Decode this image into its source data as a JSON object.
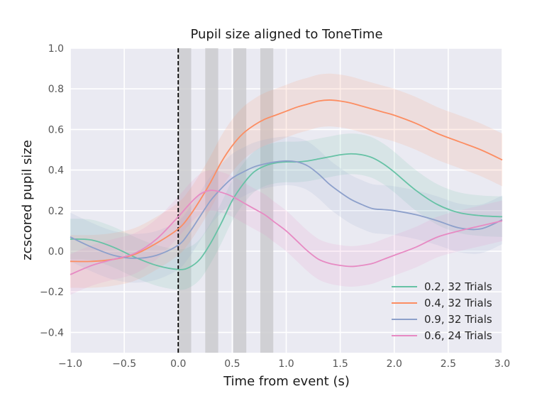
{
  "chart_data": {
    "type": "line",
    "title": "Pupil size aligned to ToneTime",
    "xlabel": "Time from event (s)",
    "ylabel": "zcscored pupil size",
    "xlim": [
      -1.0,
      3.0
    ],
    "ylim": [
      -0.5,
      1.0
    ],
    "xticks": [
      "−1.0",
      "−0.5",
      "0.0",
      "0.5",
      "1.0",
      "1.5",
      "2.0",
      "2.5",
      "3.0"
    ],
    "yticks": [
      "−0.4",
      "−0.2",
      "0.0",
      "0.2",
      "0.4",
      "0.6",
      "0.8",
      "1.0"
    ],
    "grid": true,
    "legend_position": "lower-right",
    "event_line_x": 0.0,
    "shaded_windows": [
      [
        0.0,
        0.12
      ],
      [
        0.25,
        0.37
      ],
      [
        0.51,
        0.63
      ],
      [
        0.76,
        0.88
      ]
    ],
    "colors": {
      "background": "#eaeaf2",
      "grid": "#ffffff",
      "window": "#c9c9cc",
      "event_line": "#000000"
    },
    "series": [
      {
        "name": "0.2, 32 Trials",
        "color": "#66c2a5",
        "x": [
          -1.0,
          -0.8,
          -0.6,
          -0.4,
          -0.2,
          0.0,
          0.1,
          0.2,
          0.3,
          0.4,
          0.5,
          0.6,
          0.7,
          0.8,
          0.9,
          1.0,
          1.1,
          1.2,
          1.3,
          1.4,
          1.5,
          1.6,
          1.7,
          1.8,
          1.9,
          2.0,
          2.2,
          2.4,
          2.6,
          2.8,
          3.0
        ],
        "y": [
          0.06,
          0.055,
          0.02,
          -0.03,
          -0.07,
          -0.09,
          -0.08,
          -0.04,
          0.04,
          0.14,
          0.25,
          0.33,
          0.39,
          0.42,
          0.435,
          0.44,
          0.44,
          0.445,
          0.455,
          0.465,
          0.475,
          0.48,
          0.475,
          0.46,
          0.43,
          0.39,
          0.3,
          0.23,
          0.19,
          0.175,
          0.17
        ],
        "band": 0.1
      },
      {
        "name": "0.4, 32 Trials",
        "color": "#fc8d62",
        "x": [
          -1.0,
          -0.8,
          -0.6,
          -0.4,
          -0.2,
          0.0,
          0.1,
          0.2,
          0.3,
          0.4,
          0.5,
          0.6,
          0.7,
          0.8,
          0.9,
          1.0,
          1.1,
          1.2,
          1.3,
          1.4,
          1.5,
          1.6,
          1.7,
          1.8,
          1.9,
          2.0,
          2.2,
          2.4,
          2.6,
          2.8,
          3.0
        ],
        "y": [
          -0.05,
          -0.05,
          -0.04,
          -0.015,
          0.04,
          0.11,
          0.17,
          0.25,
          0.34,
          0.44,
          0.52,
          0.58,
          0.62,
          0.65,
          0.67,
          0.69,
          0.71,
          0.725,
          0.74,
          0.745,
          0.74,
          0.73,
          0.715,
          0.7,
          0.685,
          0.67,
          0.63,
          0.58,
          0.54,
          0.5,
          0.45
        ],
        "band": 0.13
      },
      {
        "name": "0.9, 32 Trials",
        "color": "#8da0cb",
        "x": [
          -1.0,
          -0.8,
          -0.6,
          -0.4,
          -0.2,
          0.0,
          0.1,
          0.2,
          0.3,
          0.4,
          0.5,
          0.6,
          0.7,
          0.8,
          0.9,
          1.0,
          1.1,
          1.2,
          1.3,
          1.4,
          1.5,
          1.6,
          1.7,
          1.8,
          1.9,
          2.0,
          2.2,
          2.4,
          2.6,
          2.8,
          3.0
        ],
        "y": [
          0.07,
          0.02,
          -0.02,
          -0.035,
          -0.02,
          0.03,
          0.09,
          0.17,
          0.25,
          0.31,
          0.36,
          0.39,
          0.415,
          0.43,
          0.44,
          0.445,
          0.44,
          0.42,
          0.38,
          0.33,
          0.29,
          0.255,
          0.23,
          0.21,
          0.205,
          0.2,
          0.18,
          0.15,
          0.115,
          0.11,
          0.155
        ],
        "band": 0.12
      },
      {
        "name": "0.6, 24 Trials",
        "color": "#e78ac3",
        "x": [
          -1.0,
          -0.8,
          -0.6,
          -0.4,
          -0.2,
          0.0,
          0.1,
          0.2,
          0.3,
          0.4,
          0.5,
          0.6,
          0.7,
          0.8,
          0.9,
          1.0,
          1.1,
          1.2,
          1.3,
          1.4,
          1.5,
          1.6,
          1.7,
          1.8,
          1.9,
          2.0,
          2.2,
          2.4,
          2.6,
          2.8,
          3.0
        ],
        "y": [
          -0.115,
          -0.07,
          -0.04,
          -0.01,
          0.06,
          0.17,
          0.23,
          0.28,
          0.3,
          0.29,
          0.27,
          0.24,
          0.21,
          0.18,
          0.14,
          0.1,
          0.05,
          0.0,
          -0.04,
          -0.06,
          -0.07,
          -0.075,
          -0.07,
          -0.06,
          -0.04,
          -0.02,
          0.02,
          0.07,
          0.1,
          0.125,
          0.15
        ],
        "band": 0.1
      }
    ]
  }
}
